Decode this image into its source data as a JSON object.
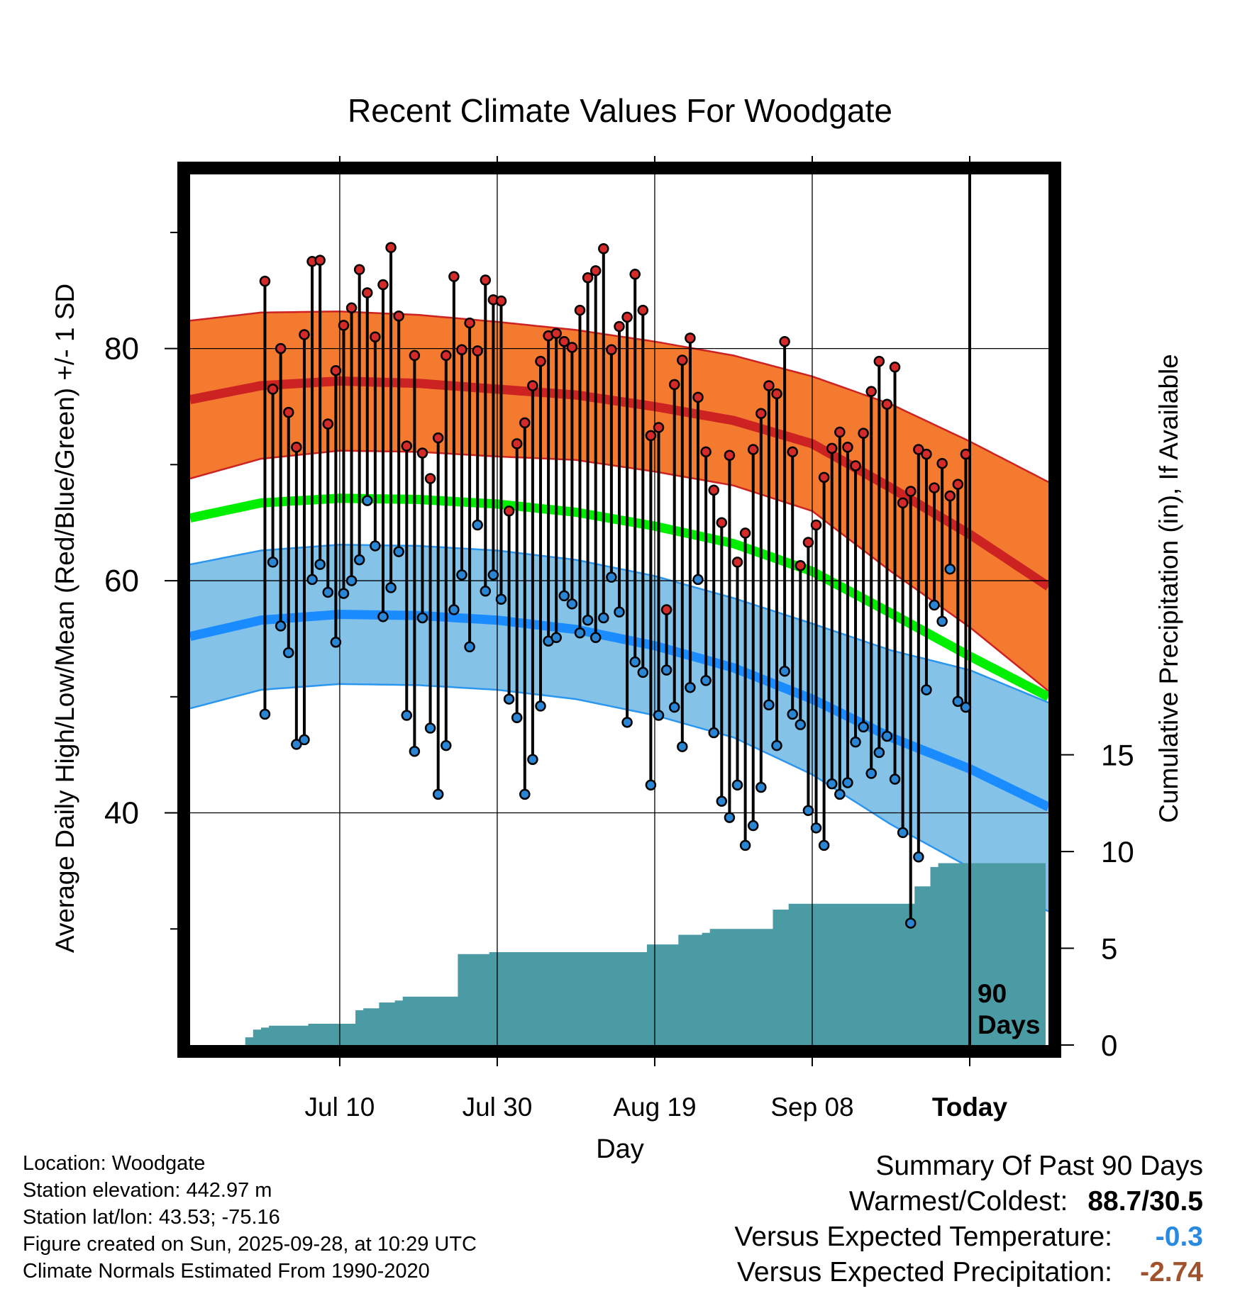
{
  "chart_data": {
    "type": "line",
    "title": "Recent Climate Values For Woodgate",
    "xlabel": "Day",
    "ylabel": "Average Daily High/Low/Mean (Red/Blue/Green) +/- 1 SD",
    "y2label": "Cumulative Precipitation (in), If Available",
    "x_domain_days": [
      -99,
      10
    ],
    "ylim": [
      20,
      95
    ],
    "y_ticks": [
      40,
      60,
      80
    ],
    "y2lim": [
      0,
      45
    ],
    "y2_ticks": [
      0,
      5,
      10,
      15
    ],
    "x_ticks": [
      {
        "day": -80,
        "label": "Jul 10"
      },
      {
        "day": -60,
        "label": "Jul 30"
      },
      {
        "day": -40,
        "label": "Aug 19"
      },
      {
        "day": -20,
        "label": "Sep 08"
      },
      {
        "day": 0,
        "label": "Today"
      }
    ],
    "annotation": [
      "90",
      "Days"
    ],
    "colors": {
      "high_band": "#f47a30",
      "high_line": "#cc2222",
      "high_edge": "#cc2222",
      "low_band": "#85c2e8",
      "low_line": "#1a8cff",
      "low_edge": "#2b96ee",
      "mean_line": "#00ee00",
      "precip": "#4a9ba3",
      "high_point": "#d42a2a",
      "low_point": "#2a86d4"
    },
    "normals": {
      "day": [
        -99,
        -90,
        -80,
        -70,
        -60,
        -50,
        -40,
        -30,
        -20,
        -10,
        0,
        10
      ],
      "high_mean": [
        75.6,
        76.8,
        77.2,
        77.0,
        76.5,
        76.0,
        75.0,
        73.8,
        71.8,
        68.0,
        64.0,
        59.5
      ],
      "high_sd": [
        6.8,
        6.3,
        6.0,
        5.9,
        5.8,
        5.6,
        5.6,
        5.6,
        5.8,
        7.2,
        8.0,
        9.0
      ],
      "low_mean": [
        55.2,
        56.6,
        57.1,
        57.0,
        56.6,
        55.8,
        54.4,
        52.5,
        49.8,
        46.5,
        43.8,
        40.5
      ],
      "low_sd": [
        6.2,
        6.0,
        6.0,
        6.0,
        6.0,
        6.0,
        6.0,
        6.0,
        6.5,
        7.5,
        8.5,
        9.0
      ],
      "avg_mean": [
        65.4,
        66.7,
        67.1,
        67.0,
        66.6,
        65.9,
        64.7,
        63.2,
        60.8,
        57.2,
        53.5,
        50.0
      ]
    },
    "series": [
      {
        "name": "Daily High",
        "values": [
          85.8,
          76.5,
          80.0,
          74.5,
          71.5,
          81.2,
          87.5,
          87.6,
          73.5,
          78.1,
          82.0,
          83.5,
          86.8,
          84.8,
          81.0,
          85.5,
          88.7,
          82.8,
          71.6,
          79.4,
          71.0,
          68.8,
          72.3,
          79.4,
          86.2,
          79.9,
          82.2,
          79.8,
          85.9,
          84.2,
          84.1,
          66.0,
          71.8,
          73.6,
          76.8,
          78.9,
          81.1,
          81.3,
          80.6,
          80.1,
          83.3,
          86.1,
          86.7,
          88.6,
          79.9,
          81.9,
          82.7,
          86.4,
          83.3,
          72.5,
          73.2,
          57.5,
          76.9,
          79.0,
          80.9,
          75.8,
          71.1,
          67.8,
          65.0,
          70.8,
          61.6,
          64.1,
          71.3,
          74.4,
          76.8,
          76.1,
          80.6,
          71.1,
          61.3,
          63.3,
          64.8,
          68.9,
          71.4,
          72.8,
          71.5,
          69.9,
          72.7,
          76.3,
          78.9,
          75.2,
          78.4,
          66.7,
          67.7,
          71.3,
          70.9,
          68.0,
          70.1,
          67.3,
          68.3,
          70.9
        ]
      },
      {
        "name": "Daily Low",
        "values": [
          48.5,
          61.6,
          56.1,
          53.8,
          45.9,
          46.3,
          60.1,
          61.4,
          59.0,
          54.7,
          58.9,
          60.0,
          61.8,
          66.9,
          63.0,
          56.9,
          59.4,
          62.5,
          48.4,
          45.3,
          56.8,
          47.3,
          41.6,
          45.8,
          57.5,
          60.5,
          54.3,
          64.8,
          59.1,
          60.5,
          58.4,
          49.8,
          48.2,
          41.6,
          44.6,
          49.2,
          54.8,
          55.1,
          58.7,
          58.0,
          55.5,
          56.6,
          55.1,
          56.8,
          60.3,
          57.3,
          47.8,
          53.0,
          52.1,
          42.4,
          48.4,
          52.3,
          49.1,
          45.7,
          50.8,
          60.1,
          51.4,
          46.9,
          41.0,
          39.6,
          42.4,
          37.2,
          38.9,
          42.2,
          49.3,
          45.8,
          52.2,
          48.5,
          47.6,
          40.2,
          38.7,
          37.2,
          42.5,
          41.6,
          42.6,
          46.1,
          47.4,
          43.4,
          45.2,
          46.6,
          42.9,
          38.3,
          30.5,
          36.2,
          50.6,
          57.9,
          56.5,
          61.0,
          49.6,
          49.1
        ]
      },
      {
        "name": "Cumulative Precipitation",
        "values": [
          0.4,
          0.8,
          0.9,
          1.0,
          1.0,
          1.0,
          1.0,
          1.0,
          1.1,
          1.1,
          1.1,
          1.1,
          1.1,
          1.1,
          1.8,
          1.9,
          1.9,
          2.2,
          2.2,
          2.3,
          2.5,
          2.5,
          2.5,
          2.5,
          2.5,
          2.5,
          2.5,
          4.7,
          4.7,
          4.7,
          4.7,
          4.8,
          4.8,
          4.8,
          4.8,
          4.8,
          4.8,
          4.8,
          4.8,
          4.8,
          4.8,
          4.8,
          4.8,
          4.8,
          4.8,
          4.8,
          4.8,
          4.8,
          4.8,
          4.8,
          4.8,
          5.2,
          5.2,
          5.2,
          5.2,
          5.7,
          5.7,
          5.7,
          5.8,
          6.0,
          6.0,
          6.0,
          6.0,
          6.0,
          6.0,
          6.0,
          6.0,
          7.0,
          7.0,
          7.3,
          7.3,
          7.3,
          7.3,
          7.3,
          7.3,
          7.3,
          7.3,
          7.3,
          7.3,
          7.3,
          7.3,
          7.3,
          7.3,
          7.3,
          7.3,
          8.2,
          8.2,
          9.2,
          9.4,
          9.4,
          9.4,
          9.4,
          9.4
        ]
      }
    ]
  },
  "info": {
    "location": "Location: Woodgate",
    "elevation": "Station elevation: 442.97 m",
    "latlon": "Station lat/lon: 43.53; -75.16",
    "created": "Figure created on Sun, 2025-09-28, at 10:29 UTC",
    "normals_source": "Climate Normals Estimated From 1990-2020"
  },
  "summary": {
    "title": "Summary Of Past 90 Days",
    "warmest_label": "Warmest/Coldest:",
    "warmest_value": "88.7/30.5",
    "temp_label": "Versus Expected Temperature:",
    "temp_value": "-0.3",
    "temp_color": "#2a8ae0",
    "precip_label": "Versus Expected Precipitation:",
    "precip_value": "-2.74",
    "precip_color": "#a0522d"
  }
}
